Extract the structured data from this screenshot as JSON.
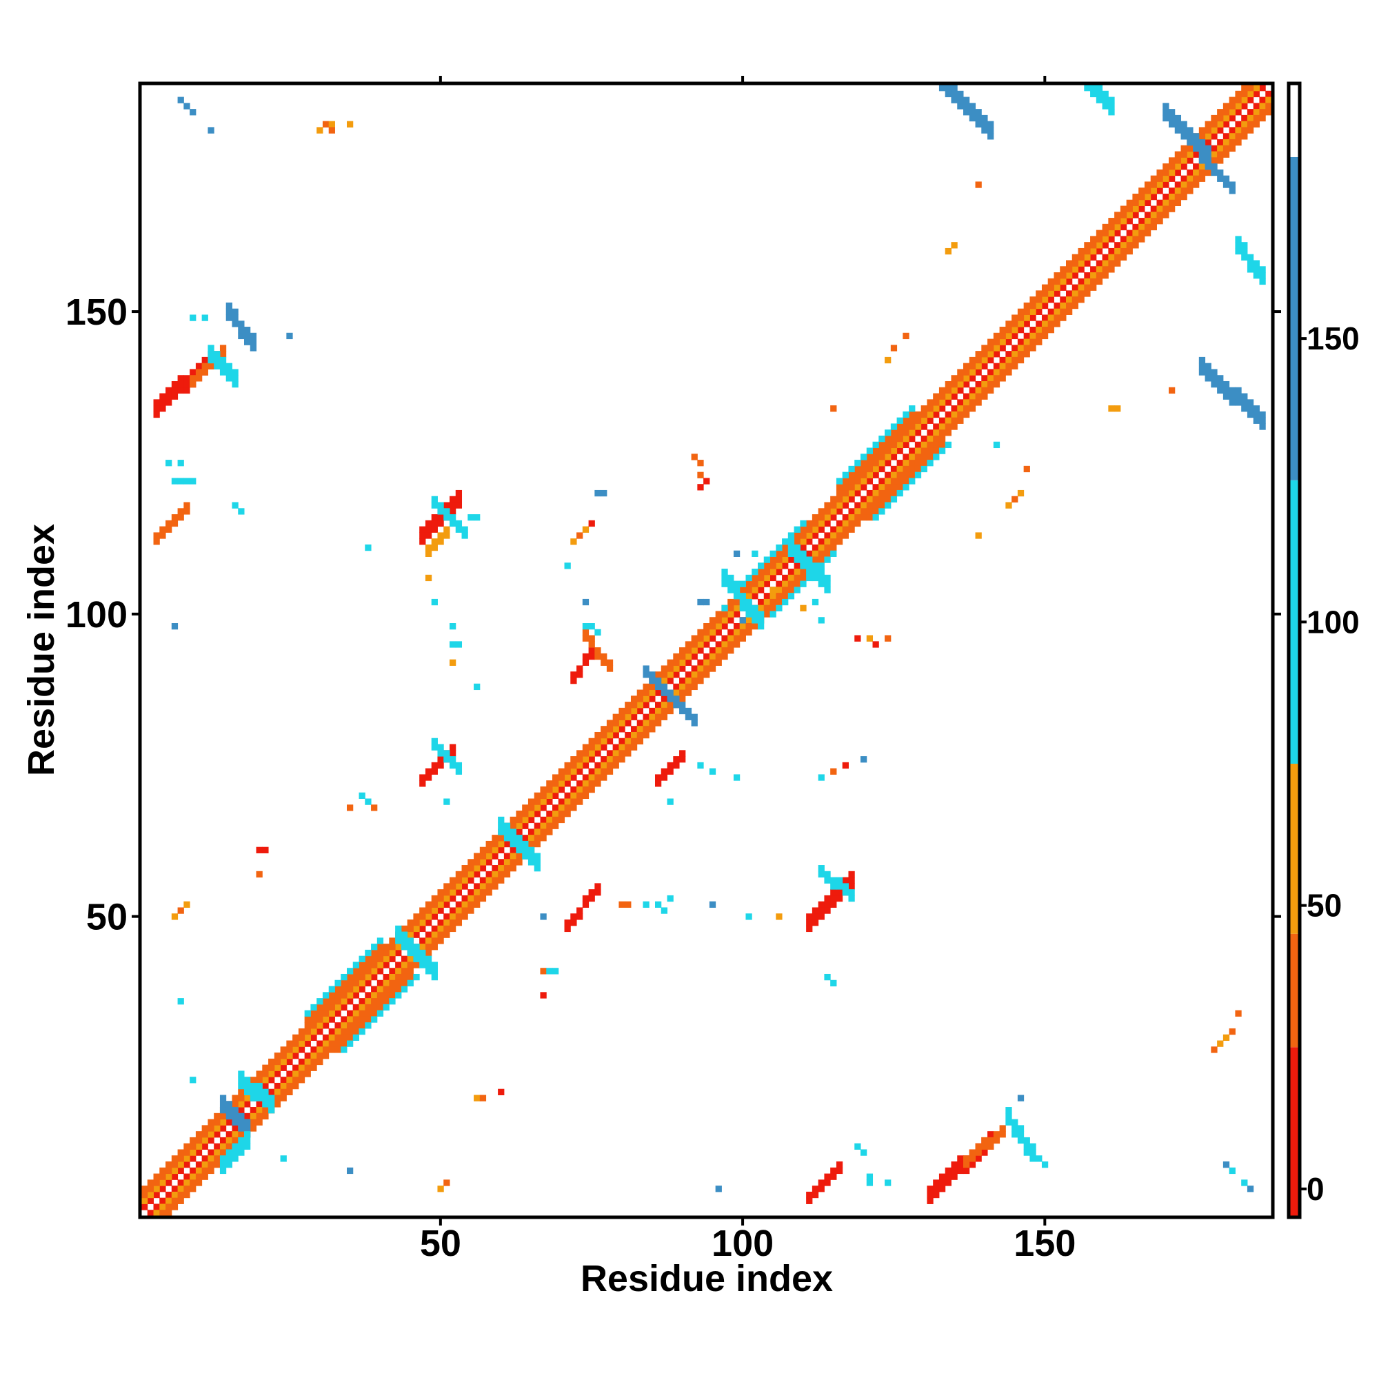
{
  "chart_data": {
    "type": "heatmap",
    "title": "",
    "xlabel": "Residue index",
    "ylabel": "Residue index",
    "xlim": [
      0.5,
      187.5
    ],
    "ylim": [
      0.5,
      187.5
    ],
    "x_ticks": [
      50,
      100,
      150
    ],
    "y_ticks": [
      50,
      100,
      150
    ],
    "colorbar": {
      "ticks": [
        0,
        50,
        100,
        150
      ],
      "range": [
        -5,
        195
      ],
      "bands": [
        {
          "from": -5,
          "to": 25,
          "color": "#ee1b0c"
        },
        {
          "from": 25,
          "to": 45,
          "color": "#f26411"
        },
        {
          "from": 45,
          "to": 75,
          "color": "#f39c0e"
        },
        {
          "from": 75,
          "to": 125,
          "color": "#1ed6e8"
        },
        {
          "from": 125,
          "to": 182,
          "color": "#3c8ec4"
        },
        {
          "from": 182,
          "to": 195,
          "color": "#ffffff"
        }
      ]
    },
    "grid": false,
    "diagonal_bands": [
      {
        "from": 1,
        "to": 188,
        "offset": 1,
        "color": "#ee1b0c"
      },
      {
        "from": 1,
        "to": 188,
        "offset": 2,
        "color": "#f39c0e"
      },
      {
        "from": 1,
        "to": 188,
        "offset": 3,
        "color": "#f26411"
      },
      {
        "from": 1,
        "to": 188,
        "offset": 4,
        "color": "#f26411"
      },
      {
        "from": 28,
        "to": 40,
        "offset": 5,
        "color": "#f26411"
      },
      {
        "from": 28,
        "to": 40,
        "offset": 6,
        "color": "#1ed6e8"
      },
      {
        "from": 100,
        "to": 110,
        "offset": 5,
        "color": "#1ed6e8"
      },
      {
        "from": 116,
        "to": 128,
        "offset": 5,
        "color": "#f26411"
      },
      {
        "from": 116,
        "to": 128,
        "offset": 6,
        "color": "#1ed6e8"
      }
    ],
    "blocks": [
      {
        "x0": 3,
        "x1": 12,
        "y0": 133,
        "y1": 141,
        "dir": "pos",
        "w": 3,
        "color": "#ee1b0c"
      },
      {
        "x0": 9,
        "x1": 14,
        "y0": 138,
        "y1": 143,
        "dir": "pos",
        "w": 2,
        "color": "#f26411"
      },
      {
        "x0": 3,
        "x1": 8,
        "y0": 112,
        "y1": 117,
        "dir": "pos",
        "w": 2,
        "color": "#f26411"
      },
      {
        "x0": 47,
        "x1": 53,
        "y0": 112,
        "y1": 118,
        "dir": "pos",
        "w": 3,
        "color": "#ee1b0c"
      },
      {
        "x0": 48,
        "x1": 51,
        "y0": 110,
        "y1": 113,
        "dir": "pos",
        "w": 2,
        "color": "#f39c0e"
      },
      {
        "x0": 47,
        "x1": 52,
        "y0": 72,
        "y1": 77,
        "dir": "pos",
        "w": 2,
        "color": "#ee1b0c"
      },
      {
        "x0": 71,
        "x1": 76,
        "y0": 48,
        "y1": 54,
        "dir": "pos",
        "w": 2,
        "color": "#ee1b0c"
      },
      {
        "x0": 72,
        "x1": 75,
        "y0": 89,
        "y1": 93,
        "dir": "pos",
        "w": 2,
        "color": "#ee1b0c"
      },
      {
        "x0": 86,
        "x1": 90,
        "y0": 72,
        "y1": 76,
        "dir": "pos",
        "w": 2,
        "color": "#ee1b0c"
      },
      {
        "x0": 111,
        "x1": 118,
        "y0": 48,
        "y1": 55,
        "dir": "pos",
        "w": 3,
        "color": "#ee1b0c"
      },
      {
        "x0": 111,
        "x1": 116,
        "y0": 3,
        "y1": 8,
        "dir": "pos",
        "w": 2,
        "color": "#ee1b0c"
      },
      {
        "x0": 131,
        "x1": 141,
        "y0": 3,
        "y1": 12,
        "dir": "pos",
        "w": 3,
        "color": "#ee1b0c"
      },
      {
        "x0": 137,
        "x1": 143,
        "y0": 9,
        "y1": 14,
        "dir": "pos",
        "w": 2,
        "color": "#f26411"
      },
      {
        "x0": 133,
        "x1": 141,
        "y0": 179,
        "y1": 187,
        "dir": "neg",
        "w": 3,
        "color": "#3c8ec4"
      },
      {
        "x0": 170,
        "x1": 177,
        "y0": 175,
        "y1": 182,
        "dir": "neg",
        "w": 3,
        "color": "#3c8ec4"
      },
      {
        "x0": 176,
        "x1": 181,
        "y0": 170,
        "y1": 175,
        "dir": "neg",
        "w": 2,
        "color": "#3c8ec4"
      },
      {
        "x0": 176,
        "x1": 186,
        "y0": 131,
        "y1": 140,
        "dir": "neg",
        "w": 3,
        "color": "#3c8ec4"
      },
      {
        "x0": 182,
        "x1": 186,
        "y0": 155,
        "y1": 160,
        "dir": "neg",
        "w": 3,
        "color": "#1ed6e8"
      },
      {
        "x0": 156,
        "x1": 161,
        "y0": 183,
        "y1": 188,
        "dir": "neg",
        "w": 3,
        "color": "#1ed6e8"
      },
      {
        "x0": 15,
        "x1": 19,
        "y0": 144,
        "y1": 149,
        "dir": "neg",
        "w": 3,
        "color": "#3c8ec4"
      },
      {
        "x0": 12,
        "x1": 16,
        "y0": 138,
        "y1": 142,
        "dir": "neg",
        "w": 3,
        "color": "#1ed6e8"
      },
      {
        "x0": 14,
        "x1": 18,
        "y0": 14,
        "y1": 18,
        "dir": "neg",
        "w": 3,
        "color": "#3c8ec4"
      },
      {
        "x0": 14,
        "x1": 18,
        "y0": 8,
        "y1": 12,
        "dir": "pos",
        "w": 3,
        "color": "#1ed6e8"
      },
      {
        "x0": 17,
        "x1": 22,
        "y0": 18,
        "y1": 22,
        "dir": "neg",
        "w": 3,
        "color": "#1ed6e8"
      },
      {
        "x0": 43,
        "x1": 49,
        "y0": 40,
        "y1": 46,
        "dir": "neg",
        "w": 3,
        "color": "#1ed6e8"
      },
      {
        "x0": 60,
        "x1": 66,
        "y0": 58,
        "y1": 64,
        "dir": "neg",
        "w": 3,
        "color": "#1ed6e8"
      },
      {
        "x0": 84,
        "x1": 92,
        "y0": 82,
        "y1": 90,
        "dir": "neg",
        "w": 2,
        "color": "#3c8ec4"
      },
      {
        "x0": 97,
        "x1": 103,
        "y0": 98,
        "y1": 105,
        "dir": "neg",
        "w": 3,
        "color": "#1ed6e8"
      },
      {
        "x0": 108,
        "x1": 114,
        "y0": 104,
        "y1": 110,
        "dir": "neg",
        "w": 3,
        "color": "#1ed6e8"
      },
      {
        "x0": 144,
        "x1": 148,
        "y0": 10,
        "y1": 16,
        "dir": "neg",
        "w": 3,
        "color": "#1ed6e8"
      },
      {
        "x0": 113,
        "x1": 118,
        "y0": 53,
        "y1": 57,
        "dir": "neg",
        "w": 2,
        "color": "#1ed6e8"
      },
      {
        "x0": 49,
        "x1": 54,
        "y0": 113,
        "y1": 118,
        "dir": "neg",
        "w": 2,
        "color": "#1ed6e8"
      },
      {
        "x0": 74,
        "x1": 78,
        "y0": 91,
        "y1": 96,
        "dir": "neg",
        "w": 2,
        "color": "#f26411"
      },
      {
        "x0": 49,
        "x1": 53,
        "y0": 74,
        "y1": 78,
        "dir": "neg",
        "w": 2,
        "color": "#1ed6e8"
      }
    ],
    "points": [
      [
        7,
        185,
        "#3c8ec4"
      ],
      [
        8,
        184,
        "#3c8ec4"
      ],
      [
        9,
        183,
        "#3c8ec4"
      ],
      [
        12,
        180,
        "#3c8ec4"
      ],
      [
        30,
        180,
        "#f39c0e"
      ],
      [
        31,
        181,
        "#f26411"
      ],
      [
        32,
        181,
        "#f39c0e"
      ],
      [
        32,
        180,
        "#f26411"
      ],
      [
        35,
        181,
        "#f39c0e"
      ],
      [
        9,
        149,
        "#1ed6e8"
      ],
      [
        11,
        149,
        "#1ed6e8"
      ],
      [
        25,
        146,
        "#3c8ec4"
      ],
      [
        5,
        125,
        "#1ed6e8"
      ],
      [
        7,
        125,
        "#1ed6e8"
      ],
      [
        6,
        122,
        "#1ed6e8"
      ],
      [
        7,
        122,
        "#1ed6e8"
      ],
      [
        8,
        122,
        "#1ed6e8"
      ],
      [
        9,
        122,
        "#1ed6e8"
      ],
      [
        16,
        118,
        "#1ed6e8"
      ],
      [
        17,
        117,
        "#1ed6e8"
      ],
      [
        38,
        111,
        "#1ed6e8"
      ],
      [
        55,
        116,
        "#1ed6e8"
      ],
      [
        56,
        116,
        "#1ed6e8"
      ],
      [
        48,
        106,
        "#f39c0e"
      ],
      [
        49,
        102,
        "#1ed6e8"
      ],
      [
        52,
        98,
        "#1ed6e8"
      ],
      [
        52,
        95,
        "#1ed6e8"
      ],
      [
        53,
        95,
        "#1ed6e8"
      ],
      [
        52,
        92,
        "#f39c0e"
      ],
      [
        56,
        88,
        "#1ed6e8"
      ],
      [
        6,
        98,
        "#3c8ec4"
      ],
      [
        72,
        112,
        "#f39c0e"
      ],
      [
        73,
        113,
        "#f26411"
      ],
      [
        74,
        114,
        "#f39c0e"
      ],
      [
        75,
        115,
        "#ee1b0c"
      ],
      [
        71,
        108,
        "#1ed6e8"
      ],
      [
        76,
        120,
        "#3c8ec4"
      ],
      [
        77,
        120,
        "#3c8ec4"
      ],
      [
        74,
        102,
        "#3c8ec4"
      ],
      [
        74,
        98,
        "#1ed6e8"
      ],
      [
        75,
        98,
        "#1ed6e8"
      ],
      [
        76,
        97,
        "#1ed6e8"
      ],
      [
        93,
        102,
        "#3c8ec4"
      ],
      [
        94,
        102,
        "#3c8ec4"
      ],
      [
        97,
        101,
        "#1ed6e8"
      ],
      [
        100,
        99,
        "#3c8ec4"
      ],
      [
        99,
        110,
        "#3c8ec4"
      ],
      [
        102,
        110,
        "#1ed6e8"
      ],
      [
        105,
        104,
        "#f39c0e"
      ],
      [
        110,
        101,
        "#f39c0e"
      ],
      [
        112,
        102,
        "#1ed6e8"
      ],
      [
        113,
        99,
        "#1ed6e8"
      ],
      [
        92,
        126,
        "#f26411"
      ],
      [
        93,
        125,
        "#f26411"
      ],
      [
        93,
        123,
        "#f26411"
      ],
      [
        94,
        122,
        "#ee1b0c"
      ],
      [
        93,
        121,
        "#ee1b0c"
      ],
      [
        115,
        134,
        "#f26411"
      ],
      [
        124,
        142,
        "#f39c0e"
      ],
      [
        125,
        144,
        "#f26411"
      ],
      [
        127,
        146,
        "#f26411"
      ],
      [
        134,
        160,
        "#f39c0e"
      ],
      [
        135,
        161,
        "#f39c0e"
      ],
      [
        139,
        171,
        "#f26411"
      ],
      [
        119,
        96,
        "#ee1b0c"
      ],
      [
        121,
        96,
        "#f39c0e"
      ],
      [
        122,
        95,
        "#ee1b0c"
      ],
      [
        124,
        96,
        "#f26411"
      ],
      [
        144,
        118,
        "#f39c0e"
      ],
      [
        145,
        119,
        "#f26411"
      ],
      [
        146,
        120,
        "#f39c0e"
      ],
      [
        147,
        124,
        "#f26411"
      ],
      [
        139,
        113,
        "#f39c0e"
      ],
      [
        142,
        128,
        "#1ed6e8"
      ],
      [
        161,
        134,
        "#f39c0e"
      ],
      [
        162,
        134,
        "#f39c0e"
      ],
      [
        171,
        137,
        "#f26411"
      ],
      [
        113,
        73,
        "#1ed6e8"
      ],
      [
        115,
        74,
        "#f26411"
      ],
      [
        117,
        75,
        "#ee1b0c"
      ],
      [
        120,
        76,
        "#3c8ec4"
      ],
      [
        88,
        69,
        "#1ed6e8"
      ],
      [
        93,
        75,
        "#1ed6e8"
      ],
      [
        95,
        74,
        "#1ed6e8"
      ],
      [
        99,
        73,
        "#1ed6e8"
      ],
      [
        37,
        70,
        "#1ed6e8"
      ],
      [
        38,
        69,
        "#1ed6e8"
      ],
      [
        35,
        68,
        "#f26411"
      ],
      [
        39,
        68,
        "#f26411"
      ],
      [
        51,
        69,
        "#1ed6e8"
      ],
      [
        20,
        61,
        "#ee1b0c"
      ],
      [
        21,
        61,
        "#ee1b0c"
      ],
      [
        20,
        57,
        "#f26411"
      ],
      [
        6,
        50,
        "#f39c0e"
      ],
      [
        7,
        51,
        "#f26411"
      ],
      [
        8,
        52,
        "#f39c0e"
      ],
      [
        7,
        36,
        "#1ed6e8"
      ],
      [
        9,
        23,
        "#1ed6e8"
      ],
      [
        67,
        41,
        "#f26411"
      ],
      [
        68,
        41,
        "#1ed6e8"
      ],
      [
        69,
        41,
        "#1ed6e8"
      ],
      [
        67,
        37,
        "#ee1b0c"
      ],
      [
        60,
        21,
        "#ee1b0c"
      ],
      [
        56,
        20,
        "#f39c0e"
      ],
      [
        57,
        20,
        "#f26411"
      ],
      [
        51,
        6,
        "#f26411"
      ],
      [
        50,
        5,
        "#f39c0e"
      ],
      [
        35,
        8,
        "#3c8ec4"
      ],
      [
        24,
        10,
        "#1ed6e8"
      ],
      [
        67,
        50,
        "#3c8ec4"
      ],
      [
        80,
        52,
        "#f26411"
      ],
      [
        81,
        52,
        "#f26411"
      ],
      [
        84,
        52,
        "#1ed6e8"
      ],
      [
        86,
        52,
        "#1ed6e8"
      ],
      [
        87,
        51,
        "#1ed6e8"
      ],
      [
        88,
        53,
        "#1ed6e8"
      ],
      [
        95,
        52,
        "#3c8ec4"
      ],
      [
        101,
        50,
        "#1ed6e8"
      ],
      [
        106,
        50,
        "#f39c0e"
      ],
      [
        114,
        40,
        "#1ed6e8"
      ],
      [
        115,
        39,
        "#1ed6e8"
      ],
      [
        96,
        5,
        "#3c8ec4"
      ],
      [
        119,
        12,
        "#1ed6e8"
      ],
      [
        120,
        11,
        "#1ed6e8"
      ],
      [
        121,
        6,
        "#1ed6e8"
      ],
      [
        121,
        7,
        "#1ed6e8"
      ],
      [
        124,
        6,
        "#1ed6e8"
      ],
      [
        146,
        20,
        "#3c8ec4"
      ],
      [
        149,
        10,
        "#1ed6e8"
      ],
      [
        150,
        9,
        "#1ed6e8"
      ],
      [
        180,
        9,
        "#3c8ec4"
      ],
      [
        181,
        8,
        "#1ed6e8"
      ],
      [
        183,
        6,
        "#1ed6e8"
      ],
      [
        184,
        5,
        "#3c8ec4"
      ],
      [
        179,
        29,
        "#f39c0e"
      ],
      [
        180,
        30,
        "#f39c0e"
      ],
      [
        181,
        31,
        "#f26411"
      ],
      [
        182,
        34,
        "#f26411"
      ],
      [
        178,
        28,
        "#f26411"
      ]
    ]
  }
}
